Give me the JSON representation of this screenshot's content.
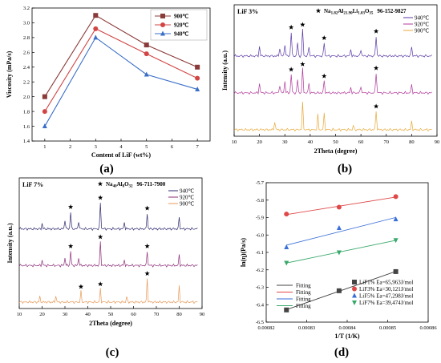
{
  "panels": {
    "a": {
      "label": "(a)"
    },
    "b": {
      "label": "(b)"
    },
    "c": {
      "label": "(c)"
    },
    "d": {
      "label": "(d)"
    }
  },
  "chart_data": [
    {
      "id": "a",
      "type": "line",
      "xlabel": "Content of LiF (wt%)",
      "ylabel": "Viscosity (mPa/s)",
      "xlim": [
        0.5,
        7.5
      ],
      "ylim": [
        1.4,
        3.2
      ],
      "xticks": [
        "1",
        "2",
        "3",
        "4",
        "5",
        "6",
        "7"
      ],
      "yticks": [
        "1.4",
        "1.6",
        "1.8",
        "2.0",
        "2.2",
        "2.4",
        "2.6",
        "2.8",
        "3.0",
        "3.2"
      ],
      "legend_position": "top-right",
      "series": [
        {
          "name": "900℃",
          "color": "#8b3a3a",
          "marker": "square",
          "x": [
            1,
            3,
            5,
            7
          ],
          "y": [
            2.0,
            3.1,
            2.7,
            2.4
          ]
        },
        {
          "name": "920℃",
          "color": "#d24545",
          "marker": "circle",
          "x": [
            1,
            3,
            5,
            7
          ],
          "y": [
            1.8,
            2.92,
            2.58,
            2.25
          ]
        },
        {
          "name": "940℃",
          "color": "#3a6fc8",
          "marker": "triangle",
          "x": [
            1,
            3,
            5,
            7
          ],
          "y": [
            1.6,
            2.8,
            2.3,
            2.1
          ]
        }
      ]
    },
    {
      "id": "b",
      "type": "line",
      "xlabel": "2Theta (degree)",
      "ylabel": "Intensity (a.u.)",
      "xlim": [
        10,
        90
      ],
      "xticks": [
        "10",
        "20",
        "30",
        "40",
        "50",
        "60",
        "70",
        "80",
        "90"
      ],
      "title": "LiF 3%",
      "phase_label": "Na",
      "phase_sub1": "1.82",
      "phase_mid1": "Al",
      "phase_sub2": "21.90",
      "phase_mid2": "Li",
      "phase_sub3": "1.03",
      "phase_mid3": "O",
      "phase_sub4": "35",
      "phase_code": "96-152-9827",
      "legend_position": "top-right",
      "series": [
        {
          "name": "940℃",
          "color": "#5b3aa8",
          "peaks": [
            [
              20,
              0.35
            ],
            [
              28,
              0.3
            ],
            [
              30,
              0.45
            ],
            [
              32.5,
              0.9
            ],
            [
              35,
              0.5
            ],
            [
              37,
              1.0
            ],
            [
              39.5,
              0.35
            ],
            [
              45.5,
              0.5
            ],
            [
              56,
              0.25
            ],
            [
              60,
              0.25
            ],
            [
              66,
              0.75
            ],
            [
              80,
              0.35
            ]
          ]
        },
        {
          "name": "920℃",
          "color": "#b0399a",
          "peaks": [
            [
              20,
              0.35
            ],
            [
              28,
              0.3
            ],
            [
              30,
              0.45
            ],
            [
              32.5,
              0.7
            ],
            [
              35,
              0.5
            ],
            [
              37,
              0.9
            ],
            [
              39.5,
              0.35
            ],
            [
              45.5,
              0.45
            ],
            [
              56,
              0.2
            ],
            [
              60,
              0.25
            ],
            [
              66,
              0.75
            ],
            [
              80,
              0.3
            ]
          ]
        },
        {
          "name": "900℃",
          "color": "#e8a93a",
          "peaks": [
            [
              26,
              0.3
            ],
            [
              37,
              1.0
            ],
            [
              43,
              0.55
            ],
            [
              45.5,
              0.6
            ],
            [
              57,
              0.15
            ],
            [
              66,
              0.7
            ],
            [
              80,
              0.3
            ]
          ]
        }
      ],
      "star_positions": [
        [
          32.5,
          0
        ],
        [
          37,
          0
        ],
        [
          45.5,
          0
        ],
        [
          66,
          0
        ],
        [
          32.5,
          1
        ],
        [
          37,
          1
        ],
        [
          45.5,
          1
        ],
        [
          66,
          1
        ],
        [
          66,
          2
        ]
      ]
    },
    {
      "id": "c",
      "type": "line",
      "xlabel": "2Theta (degree)",
      "ylabel": "Intensity (a.u.)",
      "xlim": [
        10,
        90
      ],
      "xticks": [
        "10",
        "20",
        "30",
        "40",
        "50",
        "60",
        "70",
        "80",
        "90"
      ],
      "title": "LiF 7%",
      "phase_label": "Na",
      "phase_sub1": "40",
      "phase_mid1": "Al",
      "phase_sub2": "8",
      "phase_mid2": "O",
      "phase_sub3": "32",
      "phase_code": "96-711-7900",
      "legend_position": "top-right",
      "series": [
        {
          "name": "940℃",
          "color": "#2e2a6e",
          "peaks": [
            [
              20,
              0.2
            ],
            [
              30,
              0.35
            ],
            [
              32.5,
              0.65
            ],
            [
              36,
              0.3
            ],
            [
              45.5,
              1.0
            ],
            [
              56,
              0.25
            ],
            [
              66,
              0.6
            ],
            [
              80,
              0.45
            ]
          ]
        },
        {
          "name": "920℃",
          "color": "#8e2e7a",
          "peaks": [
            [
              20,
              0.2
            ],
            [
              30,
              0.3
            ],
            [
              32.5,
              0.55
            ],
            [
              36,
              0.3
            ],
            [
              45.5,
              0.9
            ],
            [
              56,
              0.2
            ],
            [
              66,
              0.55
            ],
            [
              80,
              0.4
            ]
          ]
        },
        {
          "name": "900℃",
          "color": "#e89a5a",
          "peaks": [
            [
              19,
              0.2
            ],
            [
              26,
              0.25
            ],
            [
              37,
              0.4
            ],
            [
              45.5,
              0.5
            ],
            [
              57,
              0.2
            ],
            [
              66,
              0.9
            ],
            [
              80,
              0.6
            ]
          ]
        }
      ],
      "star_positions": [
        [
          32.5,
          0
        ],
        [
          45.5,
          0
        ],
        [
          66,
          0
        ],
        [
          32.5,
          1
        ],
        [
          45.5,
          1
        ],
        [
          66,
          1
        ],
        [
          37,
          2
        ],
        [
          45.5,
          2
        ],
        [
          66,
          2
        ]
      ]
    },
    {
      "id": "d",
      "type": "scatter",
      "xlabel": "1/T (1/K)",
      "ylabel": "ln(η)(Pa/s)",
      "xlim": [
        0.00082,
        0.00086
      ],
      "ylim": [
        -6.5,
        -5.7
      ],
      "xticks": [
        "0.00082",
        "0.00083",
        "0.00084",
        "0.00085",
        "0.00086"
      ],
      "yticks": [
        "-6.5",
        "-6.4",
        "-6.3",
        "-6.2",
        "-6.1",
        "-6.0",
        "-5.9",
        "-5.8",
        "-5.7"
      ],
      "legend_position": "bottom-right",
      "fit_label": "Fitting",
      "series": [
        {
          "name": "LiF1% Ea=65,963J/mol",
          "color": "#444444",
          "marker": "square",
          "x": [
            0.000825,
            0.000838,
            0.000852
          ],
          "y": [
            -6.43,
            -6.32,
            -6.21
          ]
        },
        {
          "name": "LiF3% Ea=30,121J/mol",
          "color": "#e04848",
          "marker": "circle",
          "x": [
            0.000825,
            0.000838,
            0.000852
          ],
          "y": [
            -5.88,
            -5.84,
            -5.78
          ]
        },
        {
          "name": "LiF5% Ea=47,298J/mol",
          "color": "#3a6fd8",
          "marker": "triangle",
          "x": [
            0.000825,
            0.000838,
            0.000852
          ],
          "y": [
            -6.07,
            -5.96,
            -5.91
          ]
        },
        {
          "name": "LiF7% Ea=39,474J/mol",
          "color": "#38a86a",
          "marker": "triangle-down",
          "x": [
            0.000825,
            0.000838,
            0.000852
          ],
          "y": [
            -6.16,
            -6.1,
            -6.03
          ]
        }
      ]
    }
  ]
}
